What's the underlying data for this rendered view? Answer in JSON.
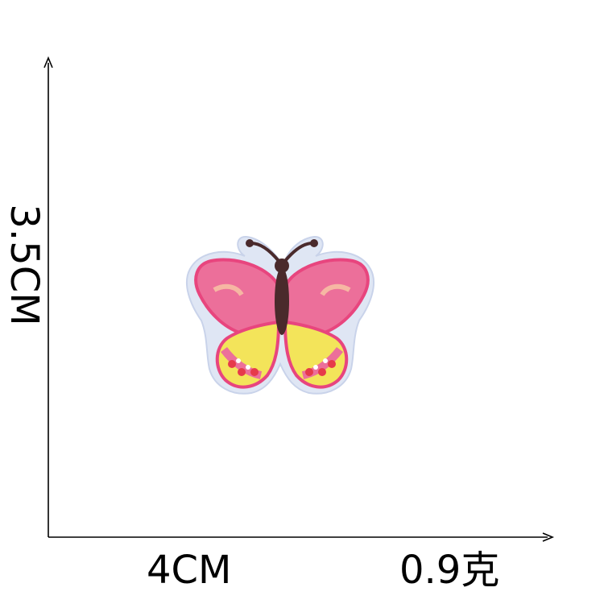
{
  "dimensions": {
    "height_label": "3.5CM",
    "width_label": "4CM",
    "weight_label": "0.9克"
  },
  "product": {
    "icon": "butterfly-patch-icon",
    "colors": {
      "border": "#dfe6f4",
      "wing_pink": "#ec6f9a",
      "wing_edge": "#e8457e",
      "wing_band": "#f6b7a3",
      "wing_yellow": "#f3e45a",
      "body": "#4a2a2c",
      "spots_red": "#e63a4a",
      "axis": "#000000"
    }
  }
}
